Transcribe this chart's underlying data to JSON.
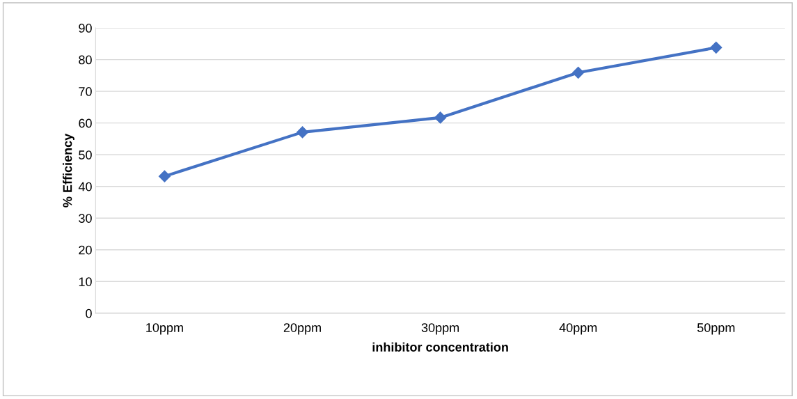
{
  "chart_data": {
    "type": "line",
    "xlabel": "inhibitor concentration",
    "ylabel": "% Efficiency",
    "categories": [
      "10ppm",
      "20ppm",
      "30ppm",
      "40ppm",
      "50ppm"
    ],
    "series": [
      {
        "color": "#4472c4",
        "values": [
          43.2,
          57.1,
          61.7,
          75.9,
          83.8
        ]
      }
    ],
    "ylim": [
      0,
      90
    ],
    "yticks": [
      0,
      10,
      20,
      30,
      40,
      50,
      60,
      70,
      80,
      90
    ],
    "grid": "y",
    "marker": "diamond",
    "line_style": "solid",
    "legend": false
  }
}
